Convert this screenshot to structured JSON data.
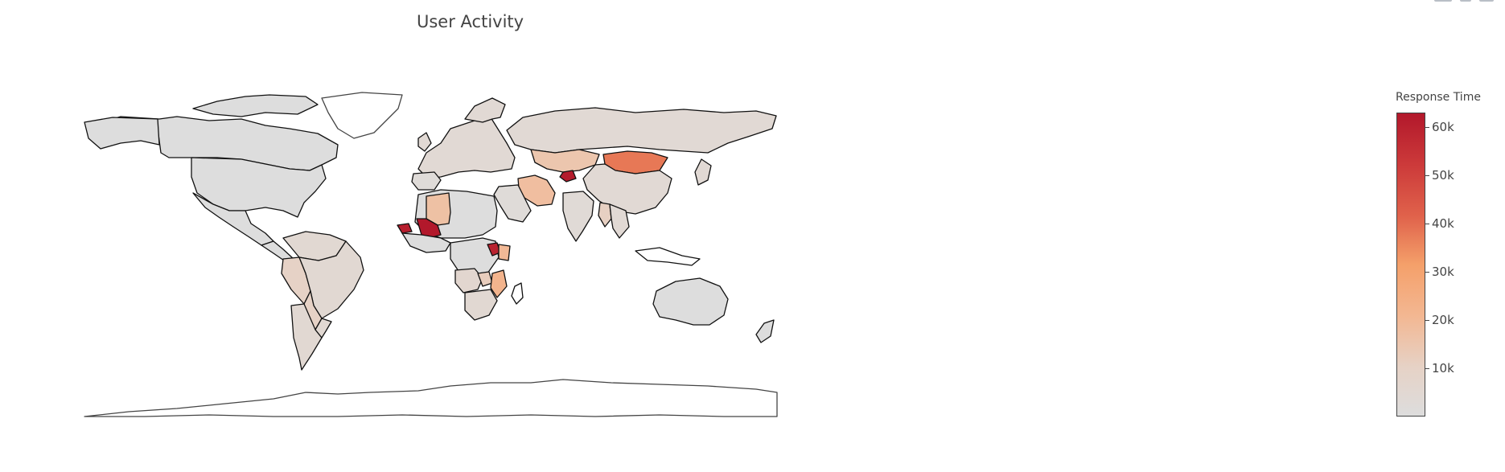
{
  "chart_data": {
    "type": "choropleth",
    "title": "User Activity",
    "colorbar": {
      "title": "Response Time",
      "range": [
        0,
        63000
      ],
      "tickvals": [
        10000,
        20000,
        30000,
        40000,
        50000,
        60000
      ],
      "ticktext": [
        "10k",
        "20k",
        "30k",
        "40k",
        "50k",
        "60k"
      ],
      "colorscale": [
        [
          0.0,
          "#dddddd"
        ],
        [
          0.16,
          "#e6d2c6"
        ],
        [
          0.33,
          "#f3b792"
        ],
        [
          0.5,
          "#f4a06a"
        ],
        [
          0.66,
          "#e0624b"
        ],
        [
          0.83,
          "#cc3a3a"
        ],
        [
          1.0,
          "#b2182b"
        ]
      ]
    },
    "regions": [
      {
        "name": "Mali",
        "value": 63000
      },
      {
        "name": "Senegal",
        "value": 61000
      },
      {
        "name": "Tajikistan",
        "value": 62000
      },
      {
        "name": "Uganda",
        "value": 60000
      },
      {
        "name": "Mongolia",
        "value": 38000
      },
      {
        "name": "Algeria",
        "value": 17000
      },
      {
        "name": "Iran",
        "value": 18000
      },
      {
        "name": "Kazakhstan",
        "value": 15000
      },
      {
        "name": "Kenya",
        "value": 20000
      },
      {
        "name": "Mozambique",
        "value": 22000
      },
      {
        "name": "Zambia",
        "value": 12000
      },
      {
        "name": "Angola",
        "value": 6000
      },
      {
        "name": "Myanmar",
        "value": 11000
      },
      {
        "name": "Peru",
        "value": 10000
      },
      {
        "name": "Brazil",
        "value": 5000
      },
      {
        "name": "Argentina",
        "value": 5000
      },
      {
        "name": "Russia",
        "value": 4000
      },
      {
        "name": "China",
        "value": 4000
      },
      {
        "name": "India",
        "value": 3000
      },
      {
        "name": "South Africa",
        "value": 5000
      },
      {
        "name": "Egypt",
        "value": 2000
      },
      {
        "name": "Saudi Arabia",
        "value": 2000
      },
      {
        "name": "Sudan",
        "value": 0
      },
      {
        "name": "Chad",
        "value": 0
      },
      {
        "name": "Libya",
        "value": 0
      },
      {
        "name": "Nigeria",
        "value": 0
      },
      {
        "name": "Canada",
        "value": 0
      },
      {
        "name": "United States",
        "value": 0
      },
      {
        "name": "Mexico",
        "value": 0
      },
      {
        "name": "Australia",
        "value": 0
      }
    ]
  }
}
